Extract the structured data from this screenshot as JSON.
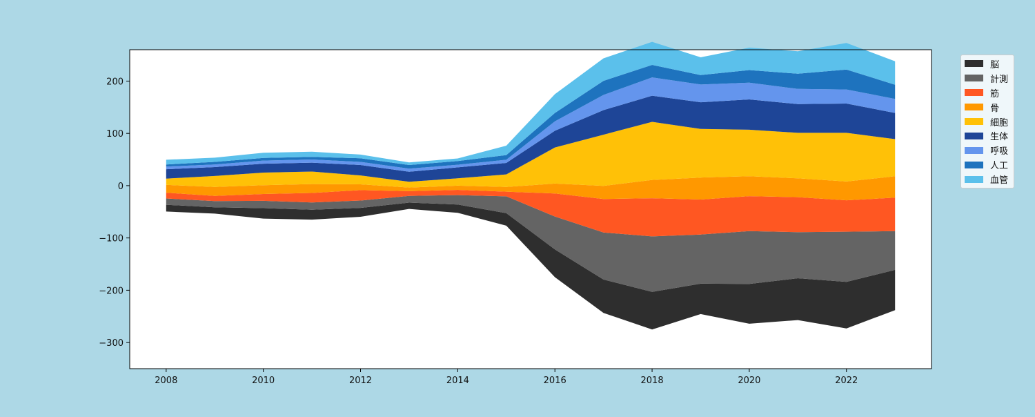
{
  "chart_data": {
    "type": "area",
    "baseline": "symmetric",
    "x": [
      2008,
      2009,
      2010,
      2011,
      2012,
      2013,
      2014,
      2015,
      2016,
      2017,
      2018,
      2019,
      2020,
      2021,
      2022,
      2023
    ],
    "xlim": [
      2007.25,
      2023.75
    ],
    "ylim": [
      -350,
      260
    ],
    "x_ticks": [
      2008,
      2010,
      2012,
      2014,
      2016,
      2018,
      2020,
      2022
    ],
    "y_ticks": [
      200,
      100,
      0,
      -100,
      -200,
      -300
    ],
    "y_tick_labels": [
      "200",
      "100",
      "0",
      "−100",
      "−200",
      "−300"
    ],
    "title": "",
    "xlabel": "",
    "ylabel": "",
    "grid": false,
    "legend_position": "outside-top-right",
    "series": [
      {
        "name": "脳",
        "color": "#2e2e2e",
        "values": [
          13,
          12,
          20,
          19,
          17,
          12,
          16,
          24,
          53,
          64,
          72,
          58,
          76,
          80,
          89,
          77
        ]
      },
      {
        "name": "計測",
        "color": "#646464",
        "values": [
          12,
          12,
          14,
          14,
          14,
          13,
          18,
          32,
          63,
          90,
          106,
          94,
          101,
          88,
          96,
          74
        ]
      },
      {
        "name": "筋",
        "color": "#ff5722",
        "values": [
          11,
          10,
          13,
          18,
          20,
          9,
          10,
          9,
          44,
          64,
          73,
          67,
          67,
          67,
          60,
          64
        ]
      },
      {
        "name": "骨",
        "color": "#ff9800",
        "values": [
          15,
          17,
          17,
          17,
          11,
          7,
          8,
          9,
          19,
          25,
          35,
          42,
          38,
          36,
          36,
          41
        ]
      },
      {
        "name": "細胞",
        "color": "#ffc107",
        "values": [
          12,
          21,
          24,
          24,
          17,
          11,
          14,
          24,
          69,
          98,
          111,
          93,
          89,
          87,
          93,
          71
        ]
      },
      {
        "name": "生体",
        "color": "#1e4597",
        "values": [
          18,
          17,
          17,
          17,
          20,
          19,
          21,
          22,
          32,
          47,
          50,
          51,
          58,
          55,
          56,
          50
        ]
      },
      {
        "name": "呼吸",
        "color": "#6495ed",
        "values": [
          5,
          5,
          6,
          6,
          6,
          6,
          5,
          6,
          18,
          29,
          35,
          34,
          32,
          29,
          27,
          27
        ]
      },
      {
        "name": "人工",
        "color": "#1e73be",
        "values": [
          4,
          5,
          5,
          5,
          7,
          7,
          7,
          9,
          16,
          27,
          24,
          18,
          24,
          29,
          38,
          27
        ]
      },
      {
        "name": "血管",
        "color": "#5bc0eb",
        "values": [
          9,
          8,
          10,
          10,
          7,
          5,
          5,
          18,
          36,
          43,
          44,
          34,
          43,
          43,
          51,
          45
        ]
      }
    ]
  }
}
